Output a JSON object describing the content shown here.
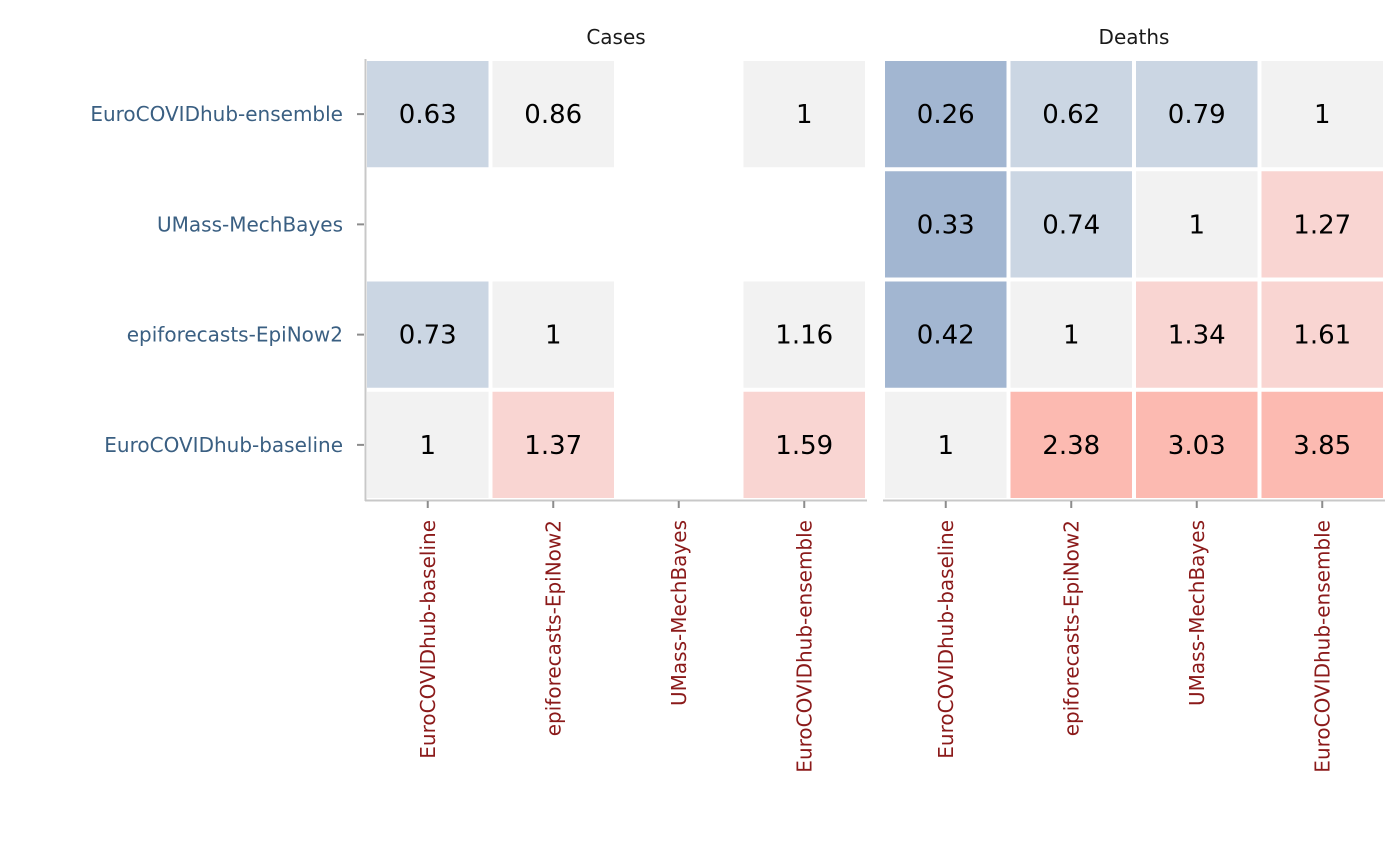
{
  "chart_data": {
    "type": "heatmap",
    "row_labels": [
      "EuroCOVIDhub-ensemble",
      "UMass-MechBayes",
      "epiforecasts-EpiNow2",
      "EuroCOVIDhub-baseline"
    ],
    "column_labels": [
      "EuroCOVIDhub-baseline",
      "epiforecasts-EpiNow2",
      "UMass-MechBayes",
      "EuroCOVIDhub-ensemble"
    ],
    "colors": {
      "low": "#a2b6d1",
      "mid_low": "#cbd6e3",
      "neutral": "#f2f2f2",
      "mid_high": "#f9d5d2",
      "high": "#fcbab1"
    },
    "panels": [
      {
        "title": "Cases",
        "values": [
          [
            0.63,
            0.86,
            null,
            1
          ],
          [
            null,
            null,
            null,
            null
          ],
          [
            0.73,
            1,
            null,
            1.16
          ],
          [
            1,
            1.37,
            null,
            1.59
          ]
        ],
        "labels": [
          [
            "0.63",
            "0.86",
            "",
            "1"
          ],
          [
            "",
            "",
            "",
            ""
          ],
          [
            "0.73",
            "1",
            "",
            "1.16"
          ],
          [
            "1",
            "1.37",
            "",
            "1.59"
          ]
        ]
      },
      {
        "title": "Deaths",
        "values": [
          [
            0.26,
            0.62,
            0.79,
            1
          ],
          [
            0.33,
            0.74,
            1,
            1.27
          ],
          [
            0.42,
            1,
            1.34,
            1.61
          ],
          [
            1,
            2.38,
            3.03,
            3.85
          ]
        ],
        "labels": [
          [
            "0.26",
            "0.62",
            "0.79",
            "1"
          ],
          [
            "0.33",
            "0.74",
            "1",
            "1.27"
          ],
          [
            "0.42",
            "1",
            "1.34",
            "1.61"
          ],
          [
            "1",
            "2.38",
            "3.03",
            "3.85"
          ]
        ]
      }
    ]
  }
}
